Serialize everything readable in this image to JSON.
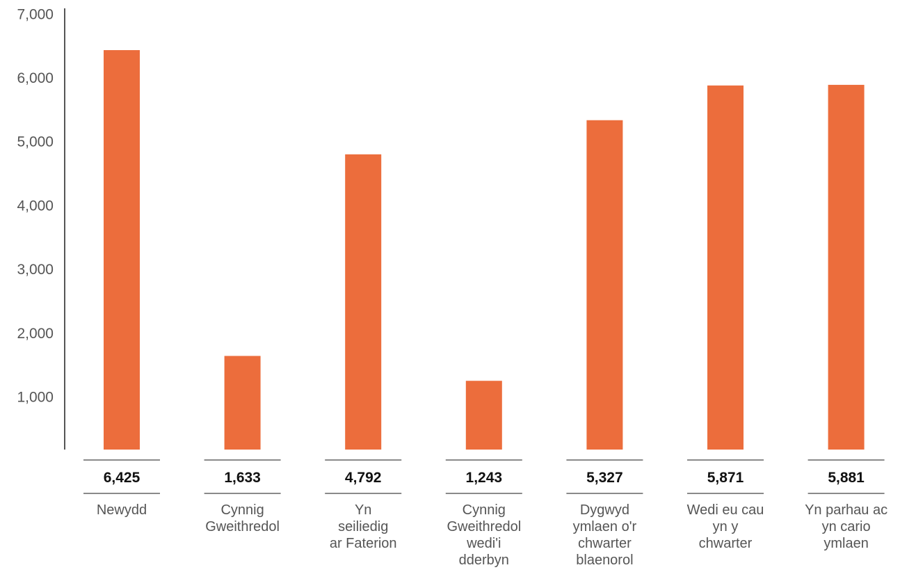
{
  "chart_data": {
    "type": "bar",
    "categories": [
      [
        "Newydd"
      ],
      [
        "Cynnig",
        "Gweithredol"
      ],
      [
        "Yn",
        "seiliedig",
        "ar Faterion"
      ],
      [
        "Cynnig",
        "Gweithredol",
        "wedi'i",
        "dderbyn"
      ],
      [
        "Dygwyd",
        "ymlaen o'r",
        "chwarter",
        "blaenorol"
      ],
      [
        "Wedi eu cau",
        "yn y",
        "chwarter"
      ],
      [
        "Yn parhau ac",
        "yn cario",
        "ymlaen"
      ]
    ],
    "values": [
      6425,
      1633,
      4792,
      1243,
      5327,
      5871,
      5881
    ],
    "value_labels": [
      "6,425",
      "1,633",
      "4,792",
      "1,243",
      "5,327",
      "5,871",
      "5,881"
    ],
    "y_ticks": [
      "1,000",
      "2,000",
      "3,000",
      "4,000",
      "5,000",
      "6,000",
      "7,000"
    ],
    "ylim": [
      0,
      7000
    ],
    "bar_color": "#ec6d3c",
    "grid": false,
    "title": "",
    "xlabel": "",
    "ylabel": ""
  }
}
